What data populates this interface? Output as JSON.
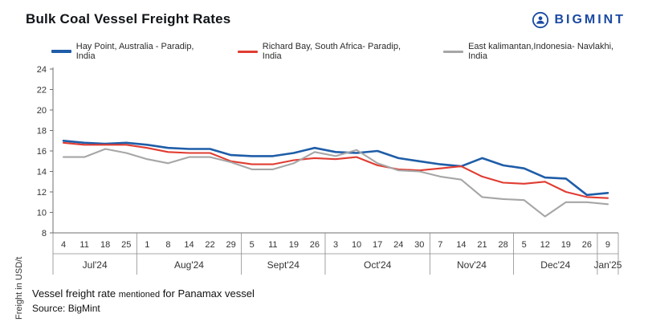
{
  "header": {
    "title": "Bulk Coal Vessel Freight Rates",
    "brand": "BIGMINT",
    "brand_color": "#1b4aa2"
  },
  "legend": [
    {
      "label": "Hay Point, Australia - Paradip, India",
      "color": "#1f5da8"
    },
    {
      "label": "Richard Bay, South Africa- Paradip, India",
      "color": "#e03c31"
    },
    {
      "label": "East kalimantan,Indonesia- Navlakhi, India",
      "color": "#a6a6a6"
    }
  ],
  "chart_data": {
    "type": "line",
    "title": "Bulk Coal Vessel Freight Rates",
    "ylabel": "Freight  in USD/t",
    "ylim": [
      8,
      24
    ],
    "ytick_step": 2,
    "grid": false,
    "legend_position": "top",
    "month_groups": [
      {
        "label": "Jul'24",
        "dates": [
          "4",
          "11",
          "18",
          "25"
        ]
      },
      {
        "label": "Aug'24",
        "dates": [
          "1",
          "8",
          "14",
          "22",
          "29"
        ]
      },
      {
        "label": "Sept'24",
        "dates": [
          "5",
          "11",
          "19",
          "26"
        ]
      },
      {
        "label": "Oct'24",
        "dates": [
          "3",
          "10",
          "17",
          "24",
          "30"
        ]
      },
      {
        "label": "Nov'24",
        "dates": [
          "7",
          "14",
          "21",
          "28"
        ]
      },
      {
        "label": "Dec'24",
        "dates": [
          "5",
          "12",
          "19",
          "26"
        ]
      },
      {
        "label": "Jan'25",
        "dates": [
          "9"
        ]
      }
    ],
    "series": [
      {
        "name": "Hay Point, Australia - Paradip, India",
        "color": "#1f5da8",
        "values": [
          17.0,
          16.8,
          16.7,
          16.8,
          16.6,
          16.3,
          16.2,
          16.2,
          15.6,
          15.5,
          15.5,
          15.8,
          16.3,
          15.9,
          15.8,
          16.0,
          15.3,
          15.0,
          14.7,
          14.5,
          15.3,
          14.6,
          14.3,
          13.4,
          13.3,
          11.7,
          11.9
        ]
      },
      {
        "name": "Richard Bay, South Africa- Paradip, India",
        "color": "#e03c31",
        "values": [
          16.8,
          16.6,
          16.6,
          16.6,
          16.3,
          15.9,
          15.8,
          15.8,
          15.0,
          14.7,
          14.7,
          15.1,
          15.3,
          15.2,
          15.4,
          14.6,
          14.2,
          14.1,
          14.3,
          14.5,
          13.5,
          12.9,
          12.8,
          13.0,
          12.0,
          11.5,
          11.4
        ]
      },
      {
        "name": "East kalimantan,Indonesia- Navlakhi, India",
        "color": "#a6a6a6",
        "values": [
          15.4,
          15.4,
          16.2,
          15.8,
          15.2,
          14.8,
          15.4,
          15.4,
          14.9,
          14.2,
          14.2,
          14.8,
          15.9,
          15.5,
          16.1,
          14.8,
          14.1,
          14.0,
          13.5,
          13.2,
          11.5,
          11.3,
          11.2,
          9.6,
          11.0,
          11.0,
          10.8
        ]
      }
    ]
  },
  "footer": {
    "note_lead": "Vessel freight rate",
    "note_small": "mentioned",
    "note_tail": "for Panamax  vessel",
    "source": "Source: BigMint"
  }
}
